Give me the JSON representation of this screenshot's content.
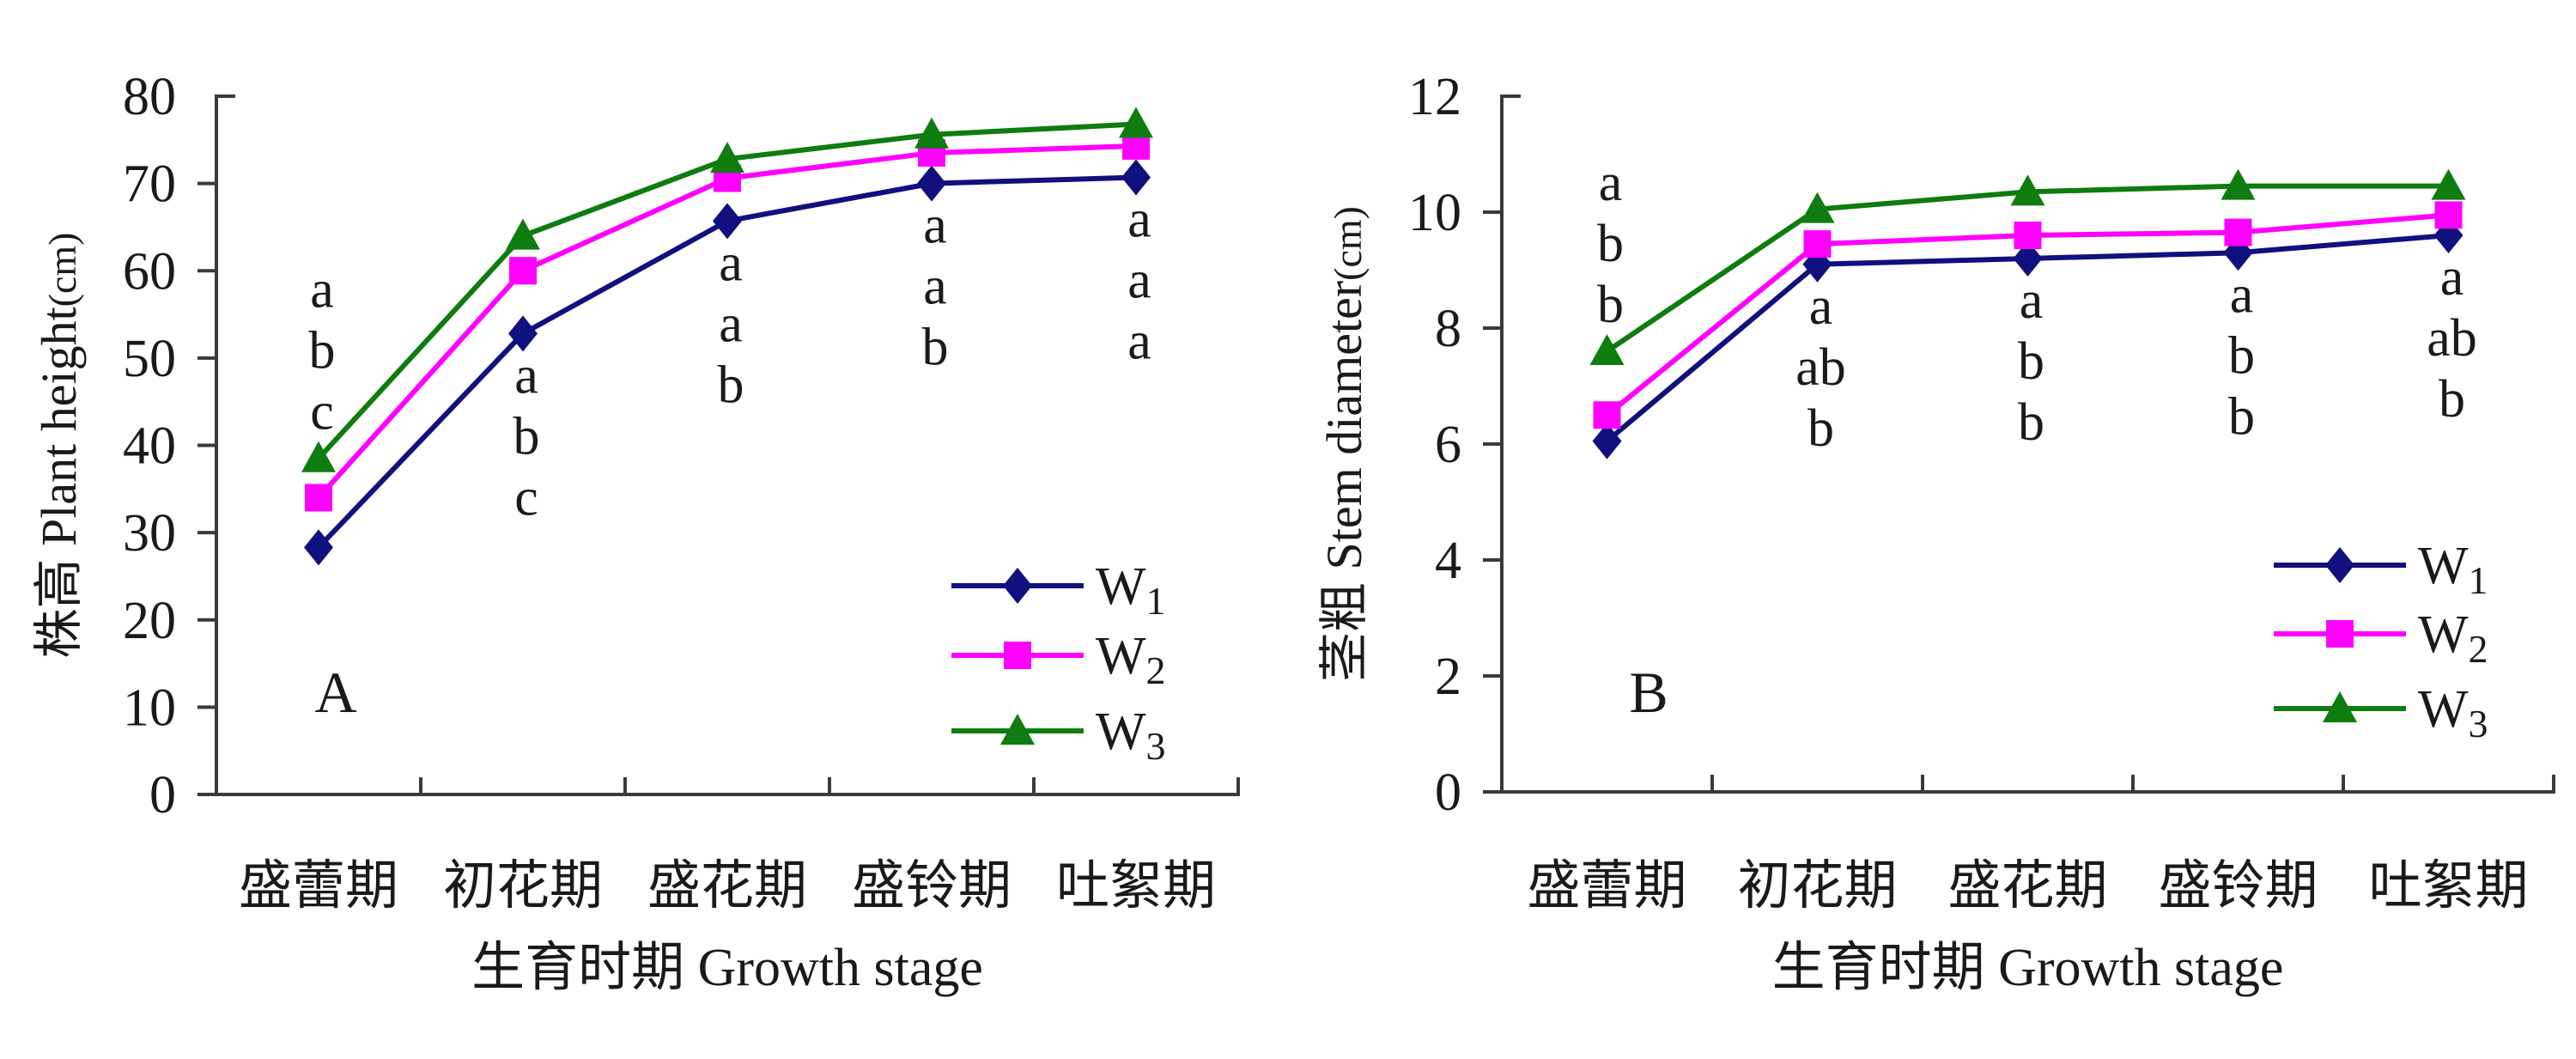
{
  "figure": {
    "background": "#ffffff",
    "text_color": "#1a1a1a",
    "axis_color": "#3a3a3a"
  },
  "series_style": [
    {
      "key": "W1",
      "color": "#10107e",
      "marker": "diamond"
    },
    {
      "key": "W2",
      "color": "#ff00ff",
      "marker": "square"
    },
    {
      "key": "W3",
      "color": "#0e7c0e",
      "marker": "triangle"
    }
  ],
  "chart_data": [
    {
      "type": "line",
      "panel_label": "A",
      "title": "",
      "ylabel": "株高 Plant height",
      "ylabel_unit": "(cm)",
      "xlabel": "生育时期 Growth stage",
      "ylim": [
        0,
        80
      ],
      "ytick_step": 10,
      "yticks": [
        "0",
        "10",
        "20",
        "30",
        "40",
        "50",
        "60",
        "70",
        "80"
      ],
      "grid": false,
      "legend_position": "inside-lower-right",
      "categories": [
        "盛蕾期",
        "初花期",
        "盛花期",
        "盛铃期",
        "吐絮期"
      ],
      "series": [
        {
          "name": "W",
          "sub": "1",
          "values": [
            28.3,
            52.8,
            65.7,
            70.0,
            70.7
          ]
        },
        {
          "name": "W",
          "sub": "2",
          "values": [
            34.0,
            60.0,
            70.6,
            73.5,
            74.3
          ]
        },
        {
          "name": "W",
          "sub": "3",
          "values": [
            38.5,
            64.0,
            72.8,
            75.6,
            76.8
          ]
        }
      ],
      "annotations": [
        {
          "letters": [
            "a",
            "b",
            "c"
          ],
          "placement": "above"
        },
        {
          "letters": [
            "a",
            "b",
            "c"
          ],
          "placement": "below"
        },
        {
          "letters": [
            "a",
            "a",
            "b"
          ],
          "placement": "below"
        },
        {
          "letters": [
            "a",
            "a",
            "b"
          ],
          "placement": "below"
        },
        {
          "letters": [
            "a",
            "a",
            "a"
          ],
          "placement": "below"
        }
      ]
    },
    {
      "type": "line",
      "panel_label": "B",
      "title": "",
      "ylabel": "茎粗 Stem diameter",
      "ylabel_unit": "(cm)",
      "xlabel": "生育时期 Growth stage",
      "ylim": [
        0,
        12
      ],
      "ytick_step": 2,
      "yticks": [
        "0",
        "2",
        "4",
        "6",
        "8",
        "10",
        "12"
      ],
      "grid": false,
      "legend_position": "inside-lower-right",
      "categories": [
        "盛蕾期",
        "初花期",
        "盛花期",
        "盛铃期",
        "吐絮期"
      ],
      "series": [
        {
          "name": "W",
          "sub": "1",
          "values": [
            6.05,
            9.1,
            9.2,
            9.3,
            9.6
          ]
        },
        {
          "name": "W",
          "sub": "2",
          "values": [
            6.5,
            9.45,
            9.6,
            9.65,
            9.95
          ]
        },
        {
          "name": "W",
          "sub": "3",
          "values": [
            7.6,
            10.05,
            10.35,
            10.45,
            10.45
          ]
        }
      ],
      "annotations": [
        {
          "letters": [
            "a",
            "b",
            "b"
          ],
          "placement": "above"
        },
        {
          "letters": [
            "a",
            "ab",
            "b"
          ],
          "placement": "below"
        },
        {
          "letters": [
            "a",
            "b",
            "b"
          ],
          "placement": "below"
        },
        {
          "letters": [
            "a",
            "b",
            "b"
          ],
          "placement": "below"
        },
        {
          "letters": [
            "a",
            "ab",
            "b"
          ],
          "placement": "below"
        }
      ]
    }
  ]
}
